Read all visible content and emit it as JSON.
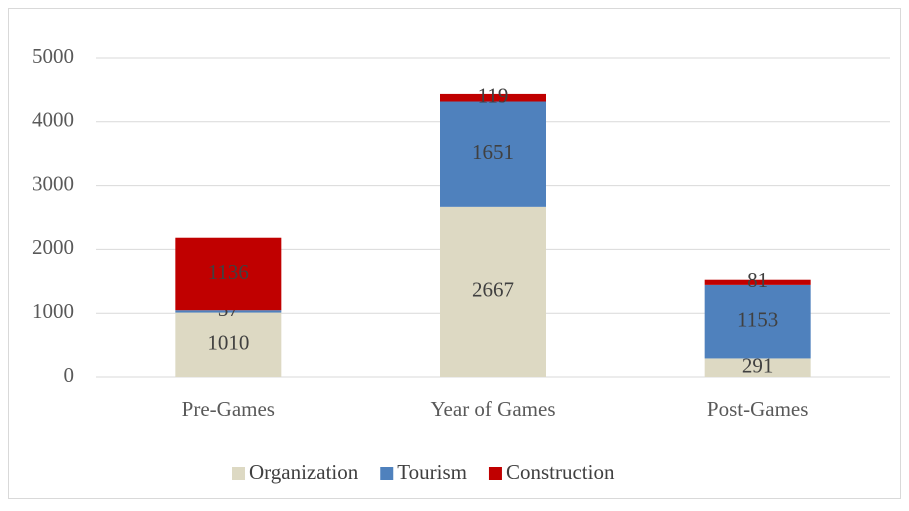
{
  "chart_data": {
    "type": "stacked_bar",
    "categories": [
      "Pre-Games",
      "Year of Games",
      "Post-Games"
    ],
    "series": [
      {
        "name": "Organization",
        "color": "#ddd9c3",
        "values": [
          1010,
          2667,
          291
        ]
      },
      {
        "name": "Tourism",
        "color": "#4f81bd",
        "values": [
          37,
          1651,
          1153
        ]
      },
      {
        "name": "Construction",
        "color": "#c00000",
        "values": [
          1136,
          119,
          81
        ]
      }
    ],
    "ylim": [
      0,
      5000
    ],
    "yticks": [
      0,
      1000,
      2000,
      3000,
      4000,
      5000
    ],
    "grid": true,
    "legend": "bottom"
  }
}
